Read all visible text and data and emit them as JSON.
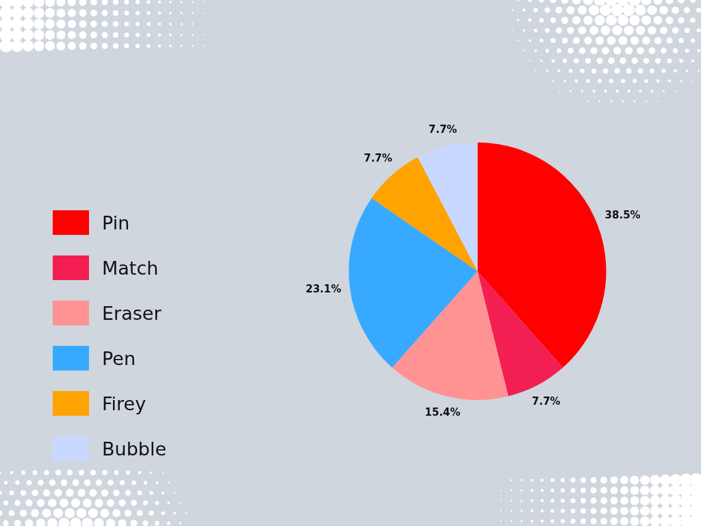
{
  "chart_data": {
    "type": "pie",
    "categories": [
      "Pin",
      "Match",
      "Eraser",
      "Pen",
      "Firey",
      "Bubble"
    ],
    "values": [
      38.5,
      7.7,
      15.4,
      23.1,
      7.7,
      7.7
    ],
    "colors": [
      "#ff0000",
      "#f31e51",
      "#ff9394",
      "#37aaff",
      "#ffa300",
      "#c9d8ff"
    ],
    "value_labels": [
      "38.5%",
      "7.7%",
      "15.4%",
      "23.1%",
      "7.7%",
      "7.7%"
    ],
    "legend": "left"
  }
}
